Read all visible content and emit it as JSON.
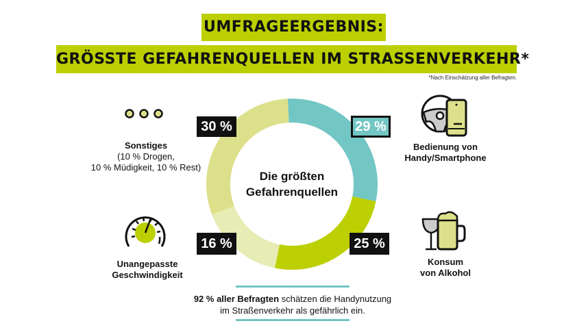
{
  "header": {
    "title_line1": "UMFRAGEERGEBNIS:",
    "title_line2": "GRÖSSTE GEFAHRENQUELLEN IM STRASSENVERKEHR*",
    "footnote": "*Nach Einschätzung aller Befragten."
  },
  "center_label": {
    "line1": "Die größten",
    "line2": "Gefahrenquellen"
  },
  "chart_data": {
    "type": "pie",
    "variant": "donut",
    "start": "top",
    "direction": "clockwise",
    "categories": [
      "Bedienung von Handy/Smartphone",
      "Konsum von Alkohol",
      "Unangepasste Geschwindigkeit",
      "Sonstiges"
    ],
    "values": [
      29,
      25,
      16,
      30
    ],
    "data_labels": [
      "29 %",
      "25 %",
      "16 %",
      "30 %"
    ],
    "colors": [
      "#72c6c4",
      "#bccf00",
      "#e6ecb4",
      "#dde08a"
    ]
  },
  "legend": {
    "phone": {
      "line1": "Bedienung von",
      "line2": "Handy/Smartphone",
      "icon": "steering-wheel-phone-icon"
    },
    "alcohol": {
      "line1": "Konsum",
      "line2": "von Alkohol",
      "icon": "wine-beer-icon"
    },
    "speed": {
      "line1": "Unangepasste",
      "line2": "Geschwindigkeit",
      "icon": "speedometer-icon"
    },
    "other": {
      "line1": "Sonstiges",
      "line2": "(10 % Drogen,",
      "line3": "10 % Müdigkeit, 10 % Rest)",
      "icon": "three-dots-icon"
    }
  },
  "note": {
    "bold": "92 % aller Befragten",
    "rest_line1": " schätzen die Handynutzung",
    "line2": "im Straßenverkehr als gefährlich ein."
  },
  "colors": {
    "accent": "#bccf00",
    "teal": "#72c6c4",
    "dark": "#111111"
  }
}
